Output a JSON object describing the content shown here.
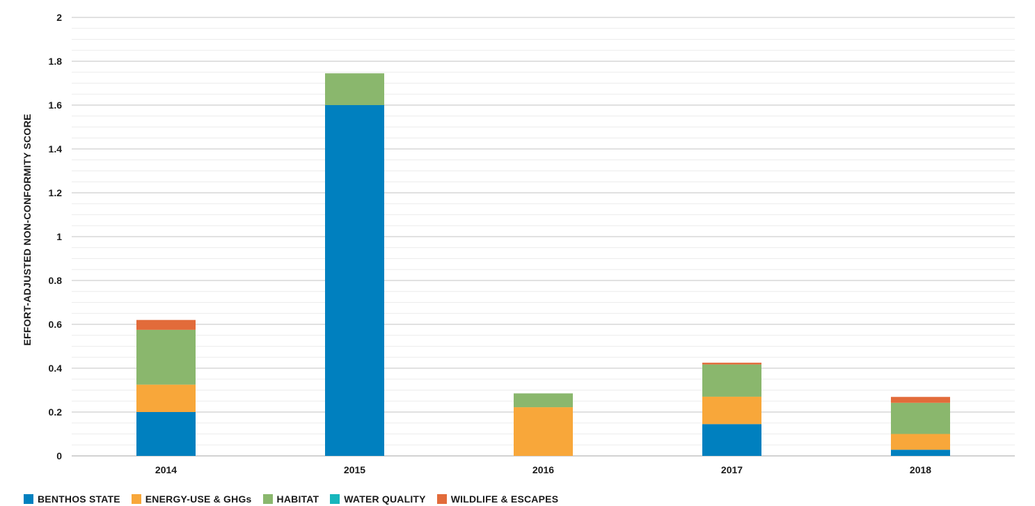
{
  "chart_data": {
    "type": "bar",
    "stacked": true,
    "categories": [
      "2014",
      "2015",
      "2016",
      "2017",
      "2018"
    ],
    "ylabel": "EFFORT-ADJUSTED NON-CONFORMITY SCORE",
    "xlabel": "",
    "ylim": [
      0,
      2
    ],
    "yticks": [
      "0",
      "0.2",
      "0.4",
      "0.6",
      "0.8",
      "1",
      "1.2",
      "1.4",
      "1.6",
      "1.8",
      "2"
    ],
    "grid": true,
    "legend_position": "bottom-left",
    "series": [
      {
        "name": "BENTHOS STATE",
        "color": "#0080bf",
        "values": [
          0.2,
          1.6,
          0,
          0.145,
          0.028
        ]
      },
      {
        "name": "ENERGY-USE & GHGs",
        "color": "#f8a73a",
        "values": [
          0.125,
          0,
          0.222,
          0.125,
          0.072
        ]
      },
      {
        "name": "HABITAT",
        "color": "#8ab76d",
        "values": [
          0.25,
          0.145,
          0.063,
          0.147,
          0.142
        ]
      },
      {
        "name": "WATER QUALITY",
        "color": "#17b6bc",
        "values": [
          0,
          0,
          0,
          0,
          0
        ]
      },
      {
        "name": "WILDLIFE & ESCAPES",
        "color": "#e26b3a",
        "values": [
          0.045,
          0,
          0,
          0.008,
          0.027
        ]
      }
    ]
  }
}
